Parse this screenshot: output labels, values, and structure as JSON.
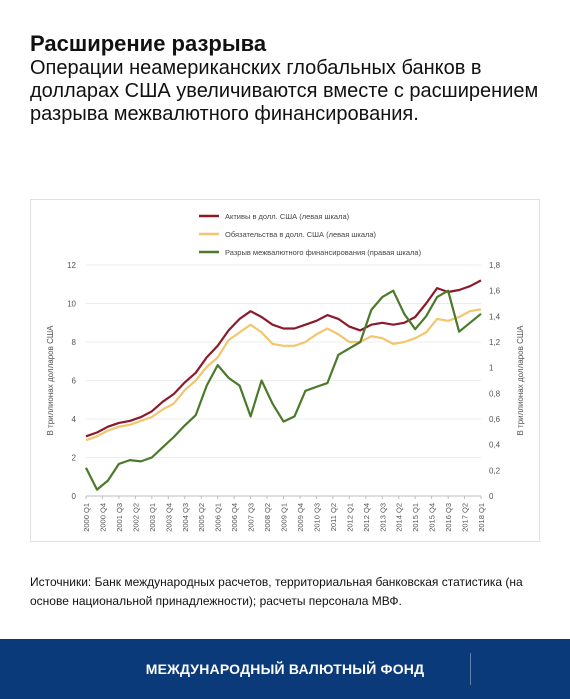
{
  "header": {
    "title": "Расширение разрыва",
    "subtitle": "Операции неамериканских глобальных банков в долларах США увеличиваются вместе с расширением разрыва межвалютного финансирования."
  },
  "source_note": "Источники: Банк международных расчетов, территориальная банковская статистика (на основе национальной принадлежности); расчеты персонала МВФ.",
  "footer": {
    "org_name": "МЕЖДУНАРОДНЫЙ ВАЛЮТНЫЙ ФОНД",
    "background": "#0a3a7a"
  },
  "chart_data": {
    "type": "line",
    "x": [
      "2000 Q1",
      "2000 Q3",
      "2001 Q1",
      "2001 Q3",
      "2002 Q1",
      "2002 Q3",
      "2003 Q1",
      "2003 Q3",
      "2004 Q1",
      "2004 Q3",
      "2005 Q1",
      "2005 Q3",
      "2006 Q1",
      "2006 Q3",
      "2007 Q1",
      "2007 Q3",
      "2008 Q1",
      "2008 Q3",
      "2009 Q1",
      "2009 Q3",
      "2010 Q1",
      "2010 Q3",
      "2011 Q1",
      "2011 Q3",
      "2012 Q1",
      "2012 Q3",
      "2013 Q1",
      "2013 Q3",
      "2014 Q1",
      "2014 Q3",
      "2015 Q1",
      "2015 Q3",
      "2016 Q1",
      "2016 Q3",
      "2017 Q1",
      "2017 Q3",
      "2018 Q1"
    ],
    "x_tick_labels": [
      "2000 Q1",
      "2000 Q4",
      "2001 Q3",
      "2002 Q2",
      "2003 Q1",
      "2003 Q4",
      "2004 Q3",
      "2005 Q2",
      "2006 Q1",
      "2006 Q4",
      "2007 Q3",
      "2008 Q2",
      "2009 Q1",
      "2009 Q4",
      "2010 Q3",
      "2011 Q2",
      "2012 Q1",
      "2012 Q4",
      "2013 Q3",
      "2014 Q2",
      "2015 Q1",
      "2015 Q4",
      "2016 Q3",
      "2017 Q2",
      "2018 Q1"
    ],
    "y_left_label": "В триллионах долларов США",
    "y_right_label": "В триллионах долларов США",
    "y_left_ticks": [
      "0",
      "2",
      "4",
      "6",
      "8",
      "10",
      "12"
    ],
    "y_right_ticks": [
      "0",
      "0,2",
      "0,4",
      "0,6",
      "0,8",
      "1",
      "1,2",
      "1,4",
      "1,6",
      "1,8"
    ],
    "ylim_left": [
      0,
      12
    ],
    "ylim_right": [
      0,
      1.8
    ],
    "legend_position": "top-center",
    "grid": "horizontal",
    "series": [
      {
        "name": "Активы в долл. США (левая шкала)",
        "axis": "left",
        "color": "#8b1a2b",
        "values": [
          3.1,
          3.3,
          3.6,
          3.8,
          3.9,
          4.1,
          4.4,
          4.9,
          5.3,
          5.9,
          6.4,
          7.2,
          7.8,
          8.6,
          9.2,
          9.6,
          9.3,
          8.9,
          8.7,
          8.7,
          8.9,
          9.1,
          9.4,
          9.2,
          8.8,
          8.6,
          8.9,
          9.0,
          8.9,
          9.0,
          9.3,
          10.0,
          10.8,
          10.6,
          10.7,
          10.9,
          11.2
        ]
      },
      {
        "name": "Обязательства в долл. США (левая шкала)",
        "axis": "left",
        "color": "#f2c66d",
        "values": [
          2.9,
          3.1,
          3.4,
          3.6,
          3.7,
          3.9,
          4.1,
          4.5,
          4.8,
          5.5,
          6.0,
          6.7,
          7.2,
          8.1,
          8.5,
          8.9,
          8.5,
          7.9,
          7.8,
          7.8,
          8.0,
          8.4,
          8.7,
          8.4,
          8.0,
          8.0,
          8.3,
          8.2,
          7.9,
          8.0,
          8.2,
          8.5,
          9.2,
          9.1,
          9.3,
          9.6,
          9.7
        ]
      },
      {
        "name": "Разрыв межвалютного финансирования (правая шкала)",
        "axis": "right",
        "color": "#4a7a2a",
        "values": [
          0.22,
          0.05,
          0.12,
          0.25,
          0.28,
          0.27,
          0.3,
          0.38,
          0.46,
          0.55,
          0.63,
          0.86,
          1.02,
          0.92,
          0.86,
          0.62,
          0.9,
          0.72,
          0.58,
          0.62,
          0.82,
          0.85,
          0.88,
          1.1,
          1.15,
          1.2,
          1.45,
          1.55,
          1.6,
          1.42,
          1.3,
          1.4,
          1.55,
          1.6,
          1.28,
          1.35,
          1.42
        ]
      }
    ]
  }
}
